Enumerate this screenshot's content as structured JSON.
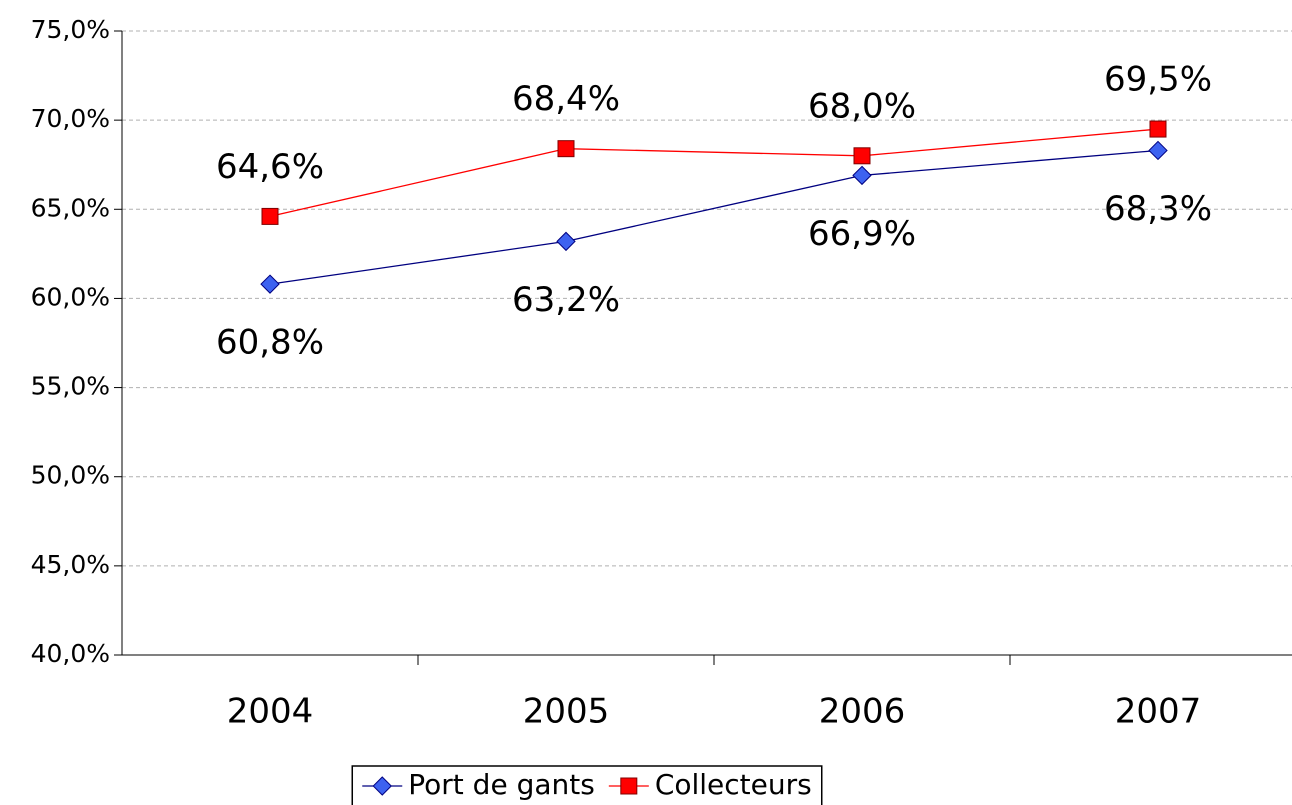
{
  "chart_data": {
    "type": "line",
    "categories": [
      "2004",
      "2005",
      "2006",
      "2007"
    ],
    "series": [
      {
        "name": "Port de gants",
        "color": "#3d62f0",
        "line_color": "#000080",
        "marker": "diamond",
        "label_position": "below",
        "values": [
          60.8,
          63.2,
          66.9,
          68.3
        ],
        "value_labels": [
          "60,8%",
          "63,2%",
          "66,9%",
          "68,3%"
        ]
      },
      {
        "name": "Collecteurs",
        "color": "#ff0000",
        "line_color": "#ff0000",
        "marker": "square",
        "label_position": "above",
        "values": [
          64.6,
          68.4,
          68.0,
          69.5
        ],
        "value_labels": [
          "64,6%",
          "68,4%",
          "68,0%",
          "69,5%"
        ]
      }
    ],
    "ylim": [
      40,
      75
    ],
    "yticks": [
      {
        "value": 40,
        "label": "40,0%"
      },
      {
        "value": 45,
        "label": "45,0%"
      },
      {
        "value": 50,
        "label": "50,0%"
      },
      {
        "value": 55,
        "label": "55,0%"
      },
      {
        "value": 60,
        "label": "60,0%"
      },
      {
        "value": 65,
        "label": "65,0%"
      },
      {
        "value": 70,
        "label": "70,0%"
      },
      {
        "value": 75,
        "label": "75,0%"
      }
    ],
    "grid": true,
    "legend": "bottom"
  }
}
